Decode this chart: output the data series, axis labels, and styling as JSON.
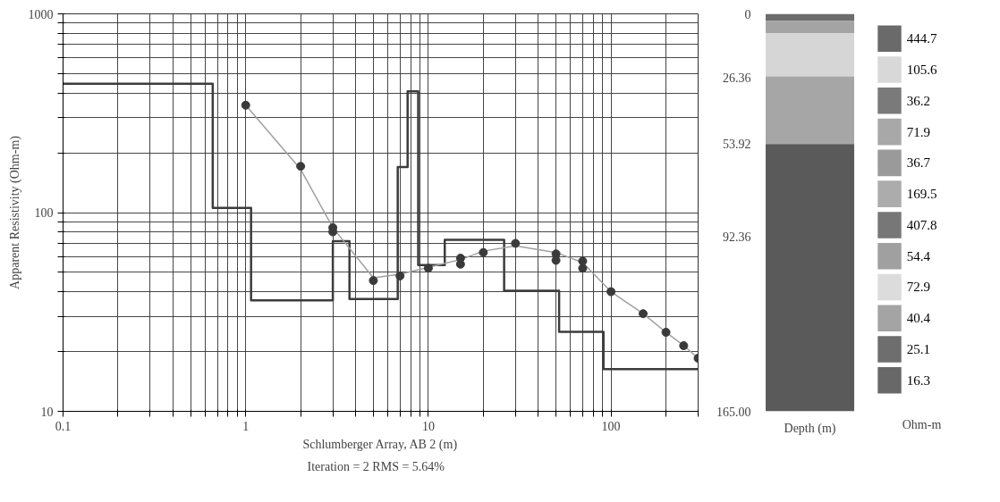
{
  "chart_data": [
    {
      "type": "scatter",
      "xlabel": "Schlumberger Array, AB 2 (m)",
      "ylabel": "Apparent Resistivity (Ohm-m)",
      "log": "xy",
      "grid": true,
      "annotations": [
        "Iteration = 2    RMS = 5.64%"
      ],
      "xlim": [
        0.1,
        300
      ],
      "ylim": [
        10,
        1000
      ],
      "xticks": [
        0.1,
        {
          "value": 0.2,
          "label": null
        },
        {
          "value": 0.3,
          "label": null
        },
        {
          "value": 0.4,
          "label": null
        },
        {
          "value": 0.5,
          "label": null
        },
        {
          "value": 0.6,
          "label": null
        },
        {
          "value": 0.7,
          "label": null
        },
        {
          "value": 0.8,
          "label": null
        },
        {
          "value": 0.9,
          "label": null
        },
        1,
        {
          "value": 2,
          "label": null
        },
        {
          "value": 3,
          "label": null
        },
        {
          "value": 4,
          "label": null
        },
        {
          "value": 5,
          "label": null
        },
        {
          "value": 6,
          "label": null
        },
        {
          "value": 7,
          "label": null
        },
        {
          "value": 8,
          "label": null
        },
        {
          "value": 9,
          "label": null
        },
        10,
        {
          "value": 20,
          "label": null
        },
        {
          "value": 30,
          "label": null
        },
        {
          "value": 40,
          "label": null
        },
        {
          "value": 50,
          "label": null
        },
        {
          "value": 60,
          "label": null
        },
        {
          "value": 70,
          "label": null
        },
        {
          "value": 80,
          "label": null
        },
        {
          "value": 90,
          "label": null
        },
        100,
        {
          "value": 200,
          "label": null
        },
        {
          "value": 300,
          "label": null
        }
      ],
      "yticks": [
        10,
        {
          "value": 20,
          "label": null
        },
        {
          "value": 30,
          "label": null
        },
        {
          "value": 40,
          "label": null
        },
        {
          "value": 50,
          "label": null
        },
        {
          "value": 60,
          "label": null
        },
        {
          "value": 70,
          "label": null
        },
        {
          "value": 80,
          "label": null
        },
        {
          "value": 90,
          "label": null
        },
        100,
        {
          "value": 200,
          "label": null
        },
        {
          "value": 300,
          "label": null
        },
        {
          "value": 400,
          "label": null
        },
        {
          "value": 500,
          "label": null
        },
        {
          "value": 600,
          "label": null
        },
        {
          "value": 700,
          "label": null
        },
        {
          "value": 800,
          "label": null
        },
        {
          "value": 900,
          "label": null
        },
        1000
      ],
      "series": [
        {
          "type": "step",
          "color": "#3c3c3c",
          "x": [
            0.1,
            0.66,
            1.07,
            3.0,
            3.7,
            6.8,
            7.7,
            8.8,
            12.3,
            26,
            52,
            91,
            300
          ],
          "values": [
            444.7,
            105.6,
            36.2,
            71.9,
            36.7,
            169.5,
            407.8,
            54.4,
            72.9,
            40.4,
            25.1,
            16.3,
            16.3
          ]
        },
        {
          "type": "line",
          "color": "#a0a0a0",
          "marker": "none",
          "x": [
            1,
            2,
            3,
            5,
            7,
            10,
            15,
            20,
            30,
            50,
            70,
            100,
            150,
            200,
            250,
            300
          ],
          "values": [
            347,
            165,
            84,
            47,
            49,
            53,
            58,
            64,
            68,
            63,
            56,
            40,
            31,
            25,
            21.4,
            18.5
          ]
        },
        {
          "type": "scatter",
          "color": "#3a3a3a",
          "marker": "circle",
          "x": [
            1,
            2,
            3,
            3,
            5,
            7,
            10,
            15,
            15,
            20,
            30,
            50,
            50,
            70,
            70,
            100,
            150,
            200,
            250,
            300
          ],
          "values": [
            347,
            171,
            84,
            80,
            45.5,
            48,
            52.5,
            59,
            55,
            63,
            70,
            62,
            57.5,
            57,
            52.5,
            40,
            31,
            25,
            21.4,
            18.5
          ]
        }
      ]
    },
    {
      "type": "bar",
      "stacked": true,
      "categories": [
        null
      ],
      "xlabel": "Depth (m)",
      "ylim": [
        165,
        0
      ],
      "yticks": [
        0,
        26.36,
        53.92,
        92.36,
        {
          "value": 165,
          "label": "165.00"
        }
      ],
      "tick_labels": "y",
      "grid": false,
      "series": [
        {
          "color": "#6c6c6c",
          "values": [
            3
          ]
        },
        {
          "color": "#a4a4a4",
          "values": [
            5
          ]
        },
        {
          "color": "#d6d6d6",
          "values": [
            18
          ]
        },
        {
          "color": "#a6a6a6",
          "values": [
            28
          ]
        },
        {
          "color": "#5a5a5a",
          "values": [
            111
          ]
        }
      ]
    },
    {
      "type": "other",
      "xlabel": "Ohm-m",
      "categories": [
        "444.7",
        "105.6",
        "36.2",
        "71.9",
        "36.7",
        "169.5",
        "407.8",
        "54.4",
        "72.9",
        "40.4",
        "25.1",
        "16.3"
      ],
      "colors": [
        "#6a6a6a",
        "#d8d8d8",
        "#7a7a7a",
        "#a8a8a8",
        "#9a9a9a",
        "#acacac",
        "#777777",
        "#a0a0a0",
        "#dcdcdc",
        "#a4a4a4",
        "#6e6e6e",
        "#686868"
      ]
    }
  ]
}
